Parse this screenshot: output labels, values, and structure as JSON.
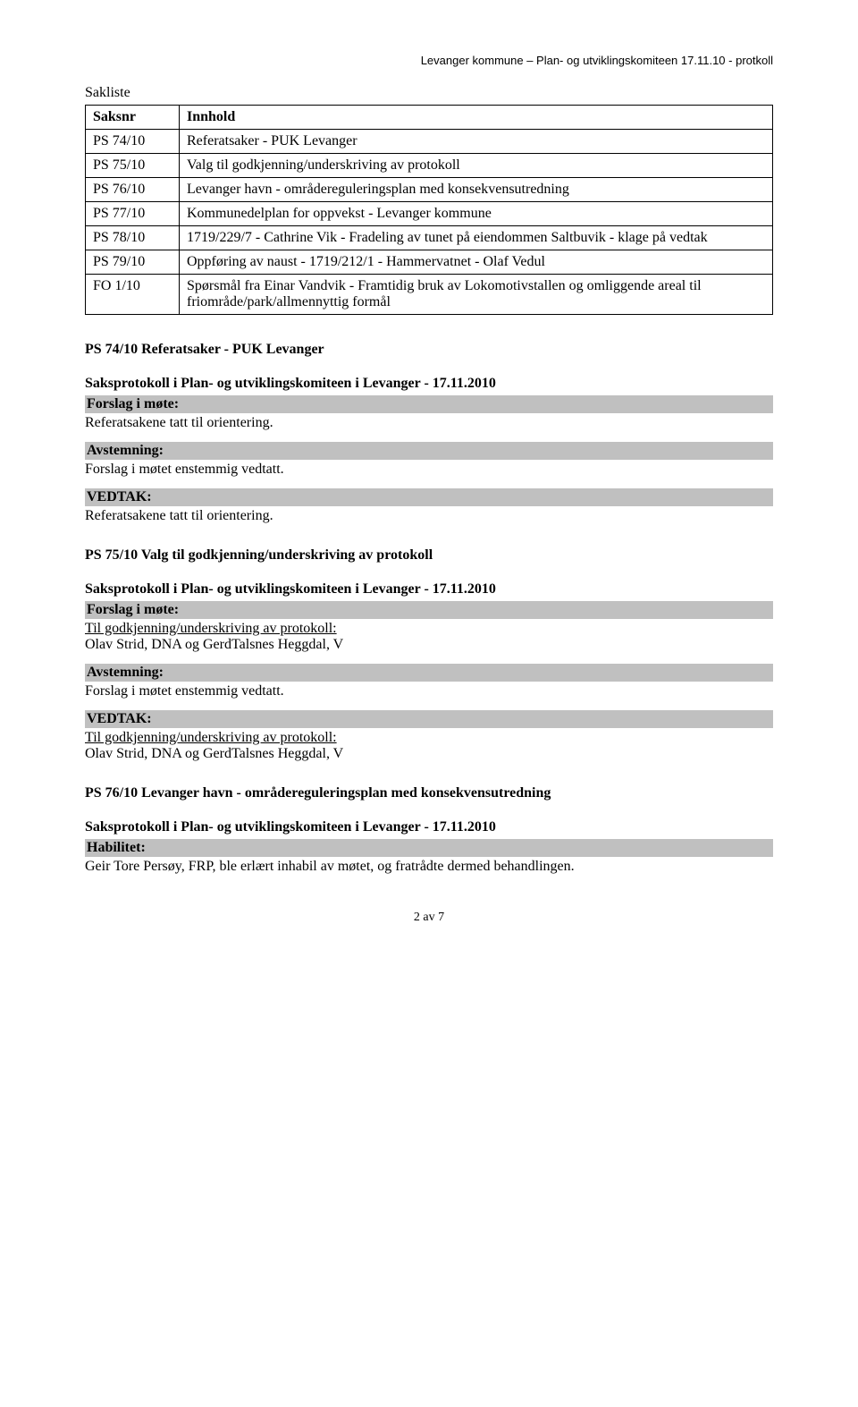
{
  "header": "Levanger kommune – Plan- og utviklingskomiteen 17.11.10  - protkoll",
  "sakliste": {
    "title": "Sakliste",
    "columns": {
      "saksnr": "Saksnr",
      "innhold": "Innhold"
    },
    "rows": [
      {
        "saksnr": "PS 74/10",
        "innhold": "Referatsaker - PUK Levanger"
      },
      {
        "saksnr": "PS 75/10",
        "innhold": "Valg til godkjenning/underskriving av protokoll"
      },
      {
        "saksnr": "PS 76/10",
        "innhold": "Levanger havn - områdereguleringsplan med konsekvensutredning"
      },
      {
        "saksnr": "PS 77/10",
        "innhold": "Kommunedelplan for oppvekst - Levanger kommune"
      },
      {
        "saksnr": "PS 78/10",
        "innhold": "1719/229/7 - Cathrine Vik - Fradeling av tunet på eiendommen Saltbuvik - klage på vedtak"
      },
      {
        "saksnr": "PS 79/10",
        "innhold": "Oppføring av naust - 1719/212/1 - Hammervatnet - Olaf Vedul"
      },
      {
        "saksnr": "FO 1/10",
        "innhold": "Spørsmål fra Einar Vandvik - Framtidig bruk av Lokomotivstallen og omliggende areal til friområde/park/allmennyttig formål"
      }
    ]
  },
  "ps74": {
    "title": "PS 74/10 Referatsaker - PUK Levanger",
    "saksprotokoll": "Saksprotokoll i Plan- og utviklingskomiteen i Levanger - 17.11.2010",
    "forslag_label": "Forslag i møte:",
    "forslag_text": "Referatsakene tatt til orientering.",
    "avstemning_label": "Avstemning:",
    "avstemning_text": "Forslag i møtet enstemmig vedtatt.",
    "vedtak_label": "VEDTAK:",
    "vedtak_text": "Referatsakene tatt til orientering."
  },
  "ps75": {
    "title": "PS 75/10 Valg til godkjenning/underskriving av protokoll",
    "saksprotokoll": "Saksprotokoll i Plan- og utviklingskomiteen i Levanger - 17.11.2010",
    "forslag_label": "Forslag i møte:",
    "forslag_line1": "Til godkjenning/underskriving av protokoll:",
    "forslag_line2": "Olav Strid, DNA og GerdTalsnes Heggdal, V",
    "avstemning_label": "Avstemning:",
    "avstemning_text": "Forslag i møtet enstemmig vedtatt.",
    "vedtak_label": "VEDTAK:",
    "vedtak_line1": "Til godkjenning/underskriving av protokoll:",
    "vedtak_line2": "Olav Strid, DNA og GerdTalsnes Heggdal, V"
  },
  "ps76": {
    "title": "PS 76/10 Levanger havn - områdereguleringsplan med konsekvensutredning",
    "saksprotokoll": "Saksprotokoll i Plan- og utviklingskomiteen i Levanger - 17.11.2010",
    "habilitet_label": "Habilitet:",
    "habilitet_text": "Geir Tore Persøy, FRP, ble erlært inhabil av møtet, og fratrådte dermed behandlingen."
  },
  "footer": "2 av 7",
  "colors": {
    "gray_bar": "#c0c0c0",
    "text": "#000000",
    "border": "#000000",
    "background": "#ffffff"
  }
}
